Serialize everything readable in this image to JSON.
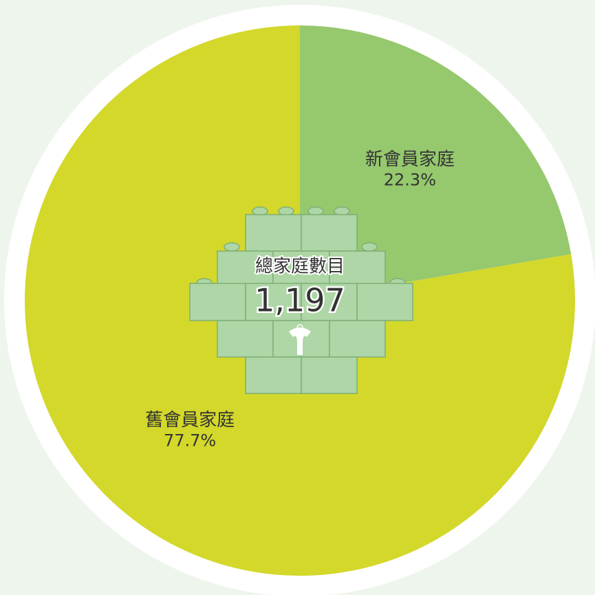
{
  "chart_data": {
    "type": "pie",
    "categories": [
      "新會員家庭",
      "舊會員家庭"
    ],
    "values": [
      22.3,
      77.7
    ],
    "value_labels": [
      "22.3%",
      "77.7%"
    ],
    "colors": [
      "#96c86e",
      "#d3d82b"
    ],
    "center_title": "總家庭數目",
    "center_total": {
      "value": 1197,
      "label": "1,197"
    }
  }
}
